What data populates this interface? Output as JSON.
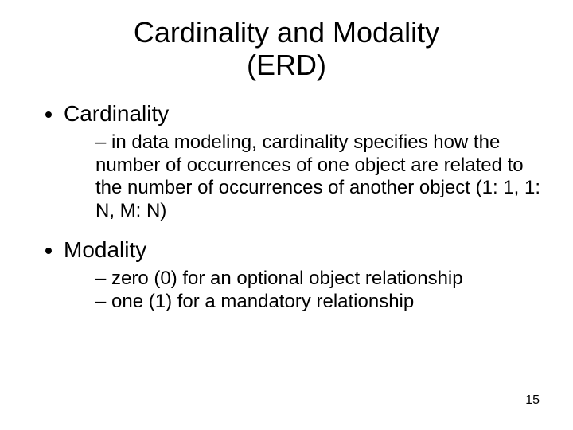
{
  "slide": {
    "title_line1": "Cardinality and Modality",
    "title_line2": "(ERD)",
    "background_color": "#ffffff",
    "text_color": "#000000",
    "title_fontsize": 36,
    "body_fontsize": 28,
    "sub_fontsize": 24,
    "pagenum_fontsize": 16,
    "font_family": "Arial",
    "bullets": [
      {
        "label": "Cardinality",
        "subs": [
          "in data modeling, cardinality specifies how the number of occurrences of one object are related to the number of occurrences of another object (1: 1, 1: N, M: N)"
        ]
      },
      {
        "label": "Modality",
        "subs": [
          "zero (0) for an optional object relationship",
          "one (1) for a mandatory relationship"
        ]
      }
    ],
    "page_number": "15"
  }
}
